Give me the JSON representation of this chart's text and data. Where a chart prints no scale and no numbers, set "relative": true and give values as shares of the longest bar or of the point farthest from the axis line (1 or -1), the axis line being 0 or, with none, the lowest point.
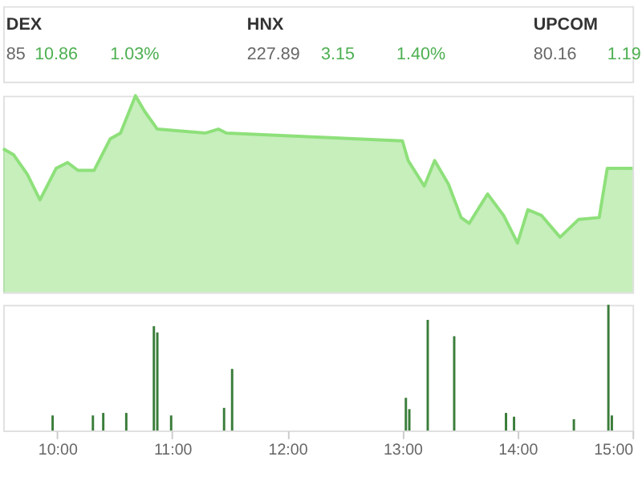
{
  "chart_data": [
    {
      "type": "other",
      "annotations": [
        "DEX",
        "85",
        "10.86",
        "1.03%",
        "HNX",
        "227.89",
        "3.15",
        "1.40%",
        "UPCOM",
        "80.16",
        "1.19"
      ]
    },
    {
      "type": "area",
      "relative": true,
      "color": "#8ee07a",
      "xlim": [
        9.53,
        15.0
      ],
      "x": [
        9.53,
        9.62,
        9.74,
        9.85,
        9.99,
        10.09,
        10.18,
        10.32,
        10.46,
        10.55,
        10.68,
        10.76,
        10.87,
        11.29,
        11.4,
        11.47,
        13.0,
        13.05,
        13.19,
        13.28,
        13.4,
        13.51,
        13.58,
        13.74,
        13.88,
        14.0,
        14.09,
        14.21,
        14.37,
        14.53,
        14.71,
        14.78,
        15.0
      ],
      "values": [
        0.73,
        0.7,
        0.6,
        0.47,
        0.63,
        0.66,
        0.62,
        0.62,
        0.78,
        0.81,
        1.0,
        0.92,
        0.83,
        0.81,
        0.83,
        0.81,
        0.77,
        0.67,
        0.54,
        0.67,
        0.55,
        0.38,
        0.35,
        0.5,
        0.39,
        0.25,
        0.42,
        0.39,
        0.28,
        0.37,
        0.38,
        0.63,
        0.63
      ]
    },
    {
      "type": "bar",
      "relative": true,
      "color": "#3a7d3a",
      "xlim": [
        9.53,
        15.0
      ],
      "xticks": [
        {
          "value": 10,
          "label": "10:00"
        },
        {
          "value": 11,
          "label": "11:00"
        },
        {
          "value": 12,
          "label": "12:00"
        },
        {
          "value": 13,
          "label": "13:00"
        },
        {
          "value": 14,
          "label": "14:00"
        },
        {
          "value": 15,
          "label": "15:00"
        }
      ],
      "x": [
        9.96,
        10.31,
        10.4,
        10.6,
        10.84,
        10.87,
        10.99,
        11.45,
        11.52,
        13.03,
        13.06,
        13.22,
        13.45,
        13.9,
        13.97,
        14.49,
        14.79,
        14.82
      ],
      "values": [
        0.12,
        0.12,
        0.14,
        0.14,
        0.83,
        0.78,
        0.12,
        0.18,
        0.49,
        0.26,
        0.17,
        0.88,
        0.75,
        0.14,
        0.11,
        0.09,
        1.0,
        0.12
      ]
    }
  ]
}
